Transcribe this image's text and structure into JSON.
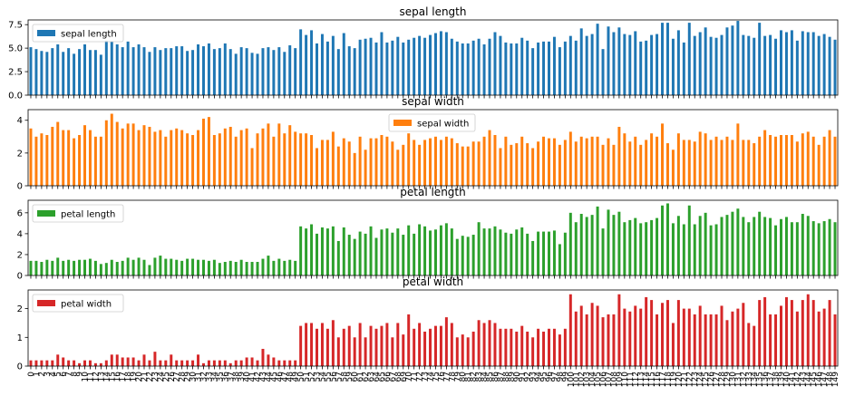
{
  "chart_data": [
    {
      "type": "bar",
      "title": "sepal length",
      "legend": {
        "label": "sepal length",
        "placement": "top-left"
      },
      "color": "#1f77b4",
      "ylim": [
        0,
        8.0
      ],
      "yticks": [
        "0.0",
        "2.5",
        "5.0",
        "7.5"
      ],
      "yticks_values": [
        0,
        2.5,
        5.0,
        7.5
      ],
      "categories": [
        "0",
        "1",
        "2",
        "3",
        "4",
        "5",
        "6",
        "7",
        "8",
        "9",
        "10",
        "11",
        "12",
        "13",
        "14",
        "15",
        "16",
        "17",
        "18",
        "19",
        "20",
        "21",
        "22",
        "23",
        "24",
        "25",
        "26",
        "27",
        "28",
        "29",
        "30",
        "31",
        "32",
        "33",
        "34",
        "35",
        "36",
        "37",
        "38",
        "39",
        "40",
        "41",
        "42",
        "43",
        "44",
        "45",
        "46",
        "47",
        "48",
        "49",
        "50",
        "51",
        "52",
        "53",
        "54",
        "55",
        "56",
        "57",
        "58",
        "59",
        "60",
        "61",
        "62",
        "63",
        "64",
        "65",
        "66",
        "67",
        "68",
        "69",
        "70",
        "71",
        "72",
        "73",
        "74",
        "75",
        "76",
        "77",
        "78",
        "79",
        "80",
        "81",
        "82",
        "83",
        "84",
        "85",
        "86",
        "87",
        "88",
        "89",
        "90",
        "91",
        "92",
        "93",
        "94",
        "95",
        "96",
        "97",
        "98",
        "99",
        "100",
        "101",
        "102",
        "103",
        "104",
        "105",
        "106",
        "107",
        "108",
        "109",
        "110",
        "111",
        "112",
        "113",
        "114",
        "115",
        "116",
        "117",
        "118",
        "119",
        "120",
        "121",
        "122",
        "123",
        "124",
        "125",
        "126",
        "127",
        "128",
        "129",
        "130",
        "131",
        "132",
        "133",
        "134",
        "135",
        "136",
        "137",
        "138",
        "139",
        "140",
        "141",
        "142",
        "143",
        "144",
        "145",
        "146",
        "147",
        "148",
        "149"
      ],
      "values": [
        5.1,
        4.9,
        4.7,
        4.6,
        5.0,
        5.4,
        4.6,
        5.0,
        4.4,
        4.9,
        5.4,
        4.8,
        4.8,
        4.3,
        5.8,
        5.7,
        5.4,
        5.1,
        5.7,
        5.1,
        5.4,
        5.1,
        4.6,
        5.1,
        4.8,
        5.0,
        5.0,
        5.2,
        5.2,
        4.7,
        4.8,
        5.4,
        5.2,
        5.5,
        4.9,
        5.0,
        5.5,
        4.9,
        4.4,
        5.1,
        5.0,
        4.5,
        4.4,
        5.0,
        5.1,
        4.8,
        5.1,
        4.6,
        5.3,
        5.0,
        7.0,
        6.4,
        6.9,
        5.5,
        6.5,
        5.7,
        6.3,
        4.9,
        6.6,
        5.2,
        5.0,
        5.9,
        6.0,
        6.1,
        5.6,
        6.7,
        5.6,
        5.8,
        6.2,
        5.6,
        5.9,
        6.1,
        6.3,
        6.1,
        6.4,
        6.6,
        6.8,
        6.7,
        6.0,
        5.7,
        5.5,
        5.5,
        5.8,
        6.0,
        5.4,
        6.0,
        6.7,
        6.3,
        5.6,
        5.5,
        5.5,
        6.1,
        5.8,
        5.0,
        5.6,
        5.7,
        5.7,
        6.2,
        5.1,
        5.7,
        6.3,
        5.8,
        7.1,
        6.3,
        6.5,
        7.6,
        4.9,
        7.3,
        6.7,
        7.2,
        6.5,
        6.4,
        6.8,
        5.7,
        5.8,
        6.4,
        6.5,
        7.7,
        7.7,
        6.0,
        6.9,
        5.6,
        7.7,
        6.3,
        6.7,
        7.2,
        6.2,
        6.1,
        6.4,
        7.2,
        7.4,
        7.9,
        6.4,
        6.3,
        6.1,
        7.7,
        6.3,
        6.4,
        6.0,
        6.9,
        6.7,
        6.9,
        5.8,
        6.8,
        6.7,
        6.7,
        6.3,
        6.5,
        6.2,
        5.9
      ]
    },
    {
      "type": "bar",
      "title": "sepal width",
      "legend": {
        "label": "sepal width",
        "placement": "top-center"
      },
      "color": "#ff7f0e",
      "ylim": [
        0,
        4.65
      ],
      "yticks": [
        "0",
        "2",
        "4"
      ],
      "yticks_values": [
        0,
        2,
        4
      ],
      "values": [
        3.5,
        3.0,
        3.2,
        3.1,
        3.6,
        3.9,
        3.4,
        3.4,
        2.9,
        3.1,
        3.7,
        3.4,
        3.0,
        3.0,
        4.0,
        4.4,
        3.9,
        3.5,
        3.8,
        3.8,
        3.4,
        3.7,
        3.6,
        3.3,
        3.4,
        3.0,
        3.4,
        3.5,
        3.4,
        3.2,
        3.1,
        3.4,
        4.1,
        4.2,
        3.1,
        3.2,
        3.5,
        3.6,
        3.0,
        3.4,
        3.5,
        2.3,
        3.2,
        3.5,
        3.8,
        3.0,
        3.8,
        3.2,
        3.7,
        3.3,
        3.2,
        3.2,
        3.1,
        2.3,
        2.8,
        2.8,
        3.3,
        2.4,
        2.9,
        2.7,
        2.0,
        3.0,
        2.2,
        2.9,
        2.9,
        3.1,
        3.0,
        2.7,
        2.2,
        2.5,
        3.2,
        2.8,
        2.5,
        2.8,
        2.9,
        3.0,
        2.8,
        3.0,
        2.9,
        2.6,
        2.4,
        2.4,
        2.7,
        2.7,
        3.0,
        3.4,
        3.1,
        2.3,
        3.0,
        2.5,
        2.6,
        3.0,
        2.6,
        2.3,
        2.7,
        3.0,
        2.9,
        2.9,
        2.5,
        2.8,
        3.3,
        2.7,
        3.0,
        2.9,
        3.0,
        3.0,
        2.5,
        2.9,
        2.5,
        3.6,
        3.2,
        2.7,
        3.0,
        2.5,
        2.8,
        3.2,
        3.0,
        3.8,
        2.6,
        2.2,
        3.2,
        2.8,
        2.8,
        2.7,
        3.3,
        3.2,
        2.8,
        3.0,
        2.8,
        3.0,
        2.8,
        3.8,
        2.8,
        2.8,
        2.6,
        3.0,
        3.4,
        3.1,
        3.0,
        3.1,
        3.1,
        3.1,
        2.7,
        3.2,
        3.3,
        3.0,
        2.5,
        3.0,
        3.4,
        3.0
      ]
    },
    {
      "type": "bar",
      "title": "petal length",
      "legend": {
        "label": "petal length",
        "placement": "top-left"
      },
      "color": "#2ca02c",
      "ylim": [
        0,
        7.2
      ],
      "yticks": [
        "0",
        "2",
        "4",
        "6"
      ],
      "yticks_values": [
        0,
        2,
        4,
        6
      ],
      "values": [
        1.4,
        1.4,
        1.3,
        1.5,
        1.4,
        1.7,
        1.4,
        1.5,
        1.4,
        1.5,
        1.5,
        1.6,
        1.4,
        1.1,
        1.2,
        1.5,
        1.3,
        1.4,
        1.7,
        1.5,
        1.7,
        1.5,
        1.0,
        1.7,
        1.9,
        1.6,
        1.6,
        1.5,
        1.4,
        1.6,
        1.6,
        1.5,
        1.5,
        1.4,
        1.5,
        1.2,
        1.3,
        1.4,
        1.3,
        1.5,
        1.3,
        1.3,
        1.3,
        1.6,
        1.9,
        1.4,
        1.6,
        1.4,
        1.5,
        1.4,
        4.7,
        4.5,
        4.9,
        4.0,
        4.6,
        4.5,
        4.7,
        3.3,
        4.6,
        3.9,
        3.5,
        4.2,
        4.0,
        4.7,
        3.6,
        4.4,
        4.5,
        4.1,
        4.5,
        3.9,
        4.8,
        4.0,
        4.9,
        4.7,
        4.3,
        4.4,
        4.8,
        5.0,
        4.5,
        3.5,
        3.8,
        3.7,
        3.9,
        5.1,
        4.5,
        4.5,
        4.7,
        4.4,
        4.1,
        4.0,
        4.4,
        4.6,
        4.0,
        3.3,
        4.2,
        4.2,
        4.2,
        4.3,
        3.0,
        4.1,
        6.0,
        5.1,
        5.9,
        5.6,
        5.8,
        6.6,
        4.5,
        6.3,
        5.8,
        6.1,
        5.1,
        5.3,
        5.5,
        5.0,
        5.1,
        5.3,
        5.5,
        6.7,
        6.9,
        5.0,
        5.7,
        4.9,
        6.7,
        4.9,
        5.7,
        6.0,
        4.8,
        4.9,
        5.6,
        5.8,
        6.1,
        6.4,
        5.6,
        5.1,
        5.6,
        6.1,
        5.6,
        5.5,
        4.8,
        5.4,
        5.6,
        5.1,
        5.1,
        5.9,
        5.7,
        5.2,
        5.0,
        5.2,
        5.4,
        5.1
      ]
    },
    {
      "type": "bar",
      "title": "petal width",
      "legend": {
        "label": "petal width",
        "placement": "top-left"
      },
      "color": "#d62728",
      "ylim": [
        0,
        2.65
      ],
      "yticks": [
        "0",
        "1",
        "2"
      ],
      "yticks_values": [
        0,
        1,
        2
      ],
      "values": [
        0.2,
        0.2,
        0.2,
        0.2,
        0.2,
        0.4,
        0.3,
        0.2,
        0.2,
        0.1,
        0.2,
        0.2,
        0.1,
        0.1,
        0.2,
        0.4,
        0.4,
        0.3,
        0.3,
        0.3,
        0.2,
        0.4,
        0.2,
        0.5,
        0.2,
        0.2,
        0.4,
        0.2,
        0.2,
        0.2,
        0.2,
        0.4,
        0.1,
        0.2,
        0.2,
        0.2,
        0.2,
        0.1,
        0.2,
        0.2,
        0.3,
        0.3,
        0.2,
        0.6,
        0.4,
        0.3,
        0.2,
        0.2,
        0.2,
        0.2,
        1.4,
        1.5,
        1.5,
        1.3,
        1.5,
        1.3,
        1.6,
        1.0,
        1.3,
        1.4,
        1.0,
        1.5,
        1.0,
        1.4,
        1.3,
        1.4,
        1.5,
        1.0,
        1.5,
        1.1,
        1.8,
        1.3,
        1.5,
        1.2,
        1.3,
        1.4,
        1.4,
        1.7,
        1.5,
        1.0,
        1.1,
        1.0,
        1.2,
        1.6,
        1.5,
        1.6,
        1.5,
        1.3,
        1.3,
        1.3,
        1.2,
        1.4,
        1.2,
        1.0,
        1.3,
        1.2,
        1.3,
        1.3,
        1.1,
        1.3,
        2.5,
        1.9,
        2.1,
        1.8,
        2.2,
        2.1,
        1.7,
        1.8,
        1.8,
        2.5,
        2.0,
        1.9,
        2.1,
        2.0,
        2.4,
        2.3,
        1.8,
        2.2,
        2.3,
        1.5,
        2.3,
        2.0,
        2.0,
        1.8,
        2.1,
        1.8,
        1.8,
        1.8,
        2.1,
        1.6,
        1.9,
        2.0,
        2.2,
        1.5,
        1.4,
        2.3,
        2.4,
        1.8,
        1.8,
        2.1,
        2.4,
        2.3,
        1.9,
        2.3,
        2.5,
        2.3,
        1.9,
        2.0,
        2.3,
        1.8
      ]
    }
  ]
}
